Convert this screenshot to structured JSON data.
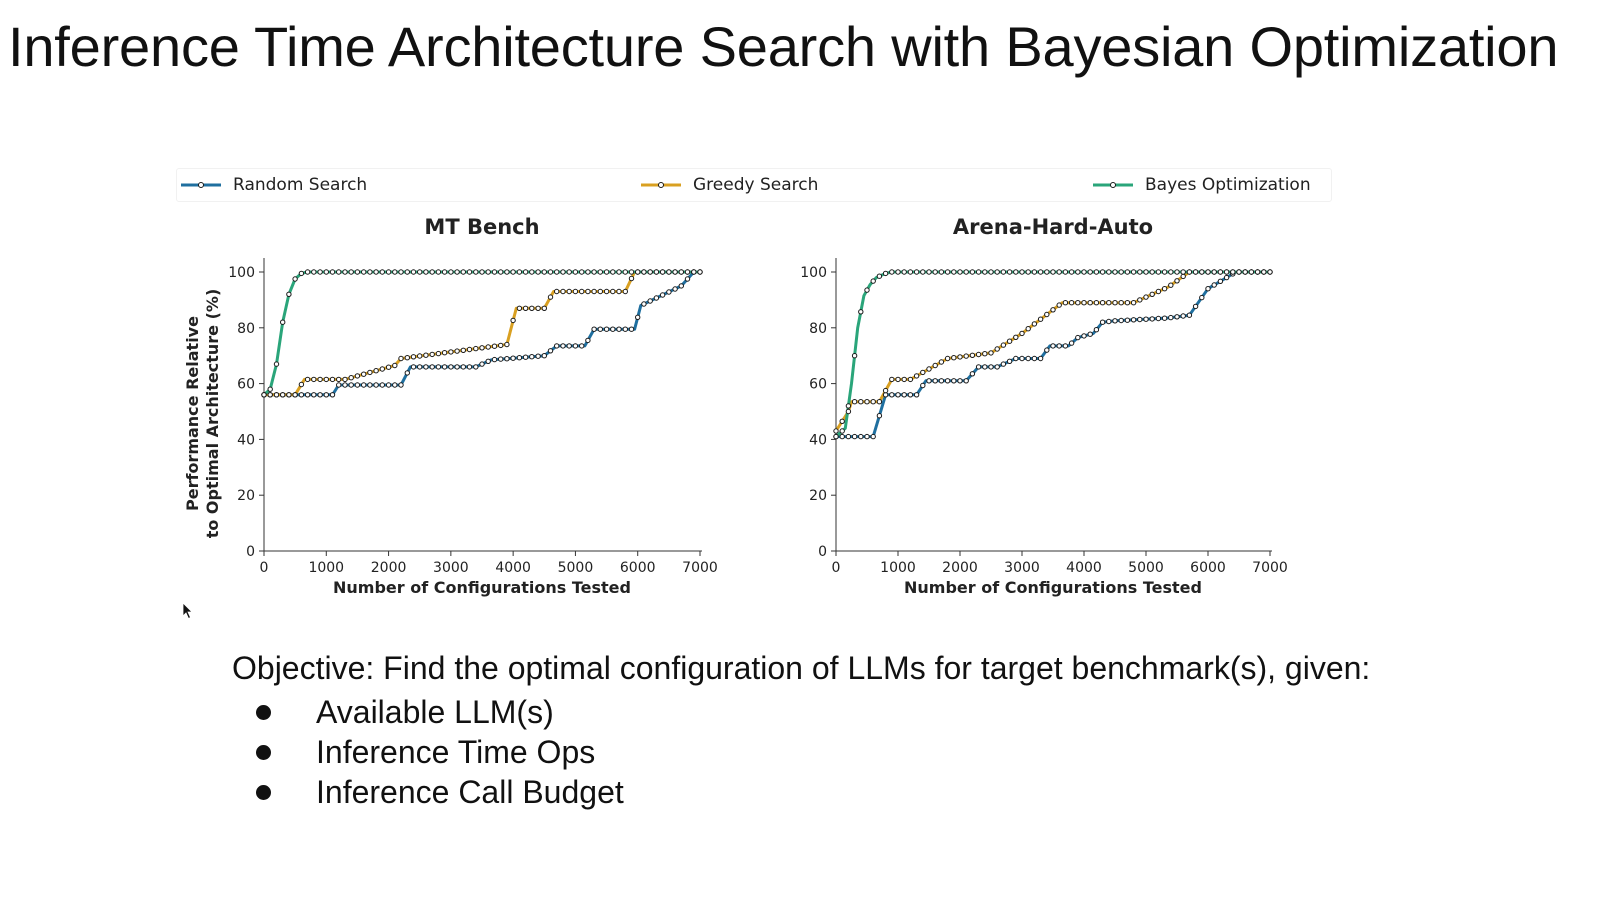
{
  "slide": {
    "title": "Inference Time Architecture Search with Bayesian Optimization",
    "objective": "Objective: Find the optimal configuration of LLMs for target benchmark(s), given:",
    "bullets": [
      "Available LLM(s)",
      "Inference Time Ops",
      "Inference Call Budget"
    ]
  },
  "legend": [
    {
      "label": "Random Search",
      "color": "#1f6f9f"
    },
    {
      "label": "Greedy Search",
      "color": "#d9a021"
    },
    {
      "label": "Bayes Optimization",
      "color": "#2aa57a"
    }
  ],
  "chart_data": [
    {
      "type": "line",
      "title": "MT Bench",
      "xlabel": "Number of Configurations Tested",
      "ylabel": "Performance Relative\nto Optimal Architecture (%)",
      "xlim": [
        0,
        7000
      ],
      "ylim": [
        0,
        100
      ],
      "xticks": [
        0,
        1000,
        2000,
        3000,
        4000,
        5000,
        6000,
        7000
      ],
      "yticks": [
        0,
        20,
        40,
        60,
        80,
        100
      ],
      "grid": false,
      "legend": "top, shared",
      "series": [
        {
          "name": "Random Search",
          "color": "#1f6f9f",
          "x": [
            0,
            1100,
            1200,
            2200,
            2350,
            3400,
            3650,
            4500,
            4700,
            5150,
            5300,
            5950,
            6050,
            6700,
            6900,
            7000
          ],
          "y": [
            56,
            56,
            59.5,
            59.5,
            66,
            66,
            68.5,
            70,
            73.5,
            73.5,
            79.5,
            79.5,
            88,
            95,
            100,
            100
          ]
        },
        {
          "name": "Greedy Search",
          "color": "#d9a021",
          "x": [
            0,
            500,
            650,
            1300,
            2100,
            2200,
            3900,
            4050,
            4500,
            4650,
            5800,
            5950,
            7000
          ],
          "y": [
            56,
            56,
            61.5,
            61.5,
            66.5,
            69,
            74,
            87,
            87,
            93,
            93,
            100,
            100
          ],
          "step": 100
        },
        {
          "name": "Bayes Optimization",
          "color": "#2aa57a",
          "x": [
            0,
            100,
            200,
            300,
            400,
            500,
            600,
            700,
            7000
          ],
          "y": [
            56,
            58,
            67,
            82,
            92,
            97.5,
            99.5,
            100,
            100
          ],
          "step": 100
        }
      ]
    },
    {
      "type": "line",
      "title": "Arena-Hard-Auto",
      "xlabel": "Number of Configurations Tested",
      "ylabel": "",
      "xlim": [
        0,
        7000
      ],
      "ylim": [
        0,
        100
      ],
      "xticks": [
        0,
        1000,
        2000,
        3000,
        4000,
        5000,
        6000,
        7000
      ],
      "yticks": [
        0,
        20,
        40,
        60,
        80,
        100
      ],
      "grid": false,
      "legend": "top, shared",
      "series": [
        {
          "name": "Random Search",
          "color": "#1f6f9f",
          "x": [
            0,
            600,
            800,
            1300,
            1450,
            2100,
            2300,
            2600,
            2900,
            3300,
            3450,
            3750,
            3900,
            4150,
            4300,
            4500,
            5350,
            5700,
            6000,
            6450,
            7000
          ],
          "y": [
            41,
            41,
            56,
            56,
            61,
            61,
            66,
            66,
            69,
            69,
            73.5,
            73.5,
            76.5,
            78,
            82,
            82.5,
            83.5,
            84.5,
            94,
            100,
            100
          ],
          "step": 100
        },
        {
          "name": "Greedy Search",
          "color": "#d9a021",
          "x": [
            0,
            200,
            250,
            700,
            900,
            1200,
            1800,
            2500,
            3000,
            3650,
            4800,
            5350,
            5700,
            7000
          ],
          "y": [
            43,
            50,
            53.5,
            53.5,
            61.5,
            61.5,
            69,
            71,
            78,
            89,
            89,
            94.5,
            100,
            100
          ],
          "step": 100
        },
        {
          "name": "Bayes Optimization",
          "color": "#2aa57a",
          "x": [
            0,
            150,
            250,
            350,
            450,
            550,
            650,
            800,
            900,
            7000
          ],
          "y": [
            41,
            44,
            60,
            80,
            91.5,
            95.5,
            98,
            99.5,
            100,
            100
          ],
          "step": 100
        }
      ]
    }
  ]
}
